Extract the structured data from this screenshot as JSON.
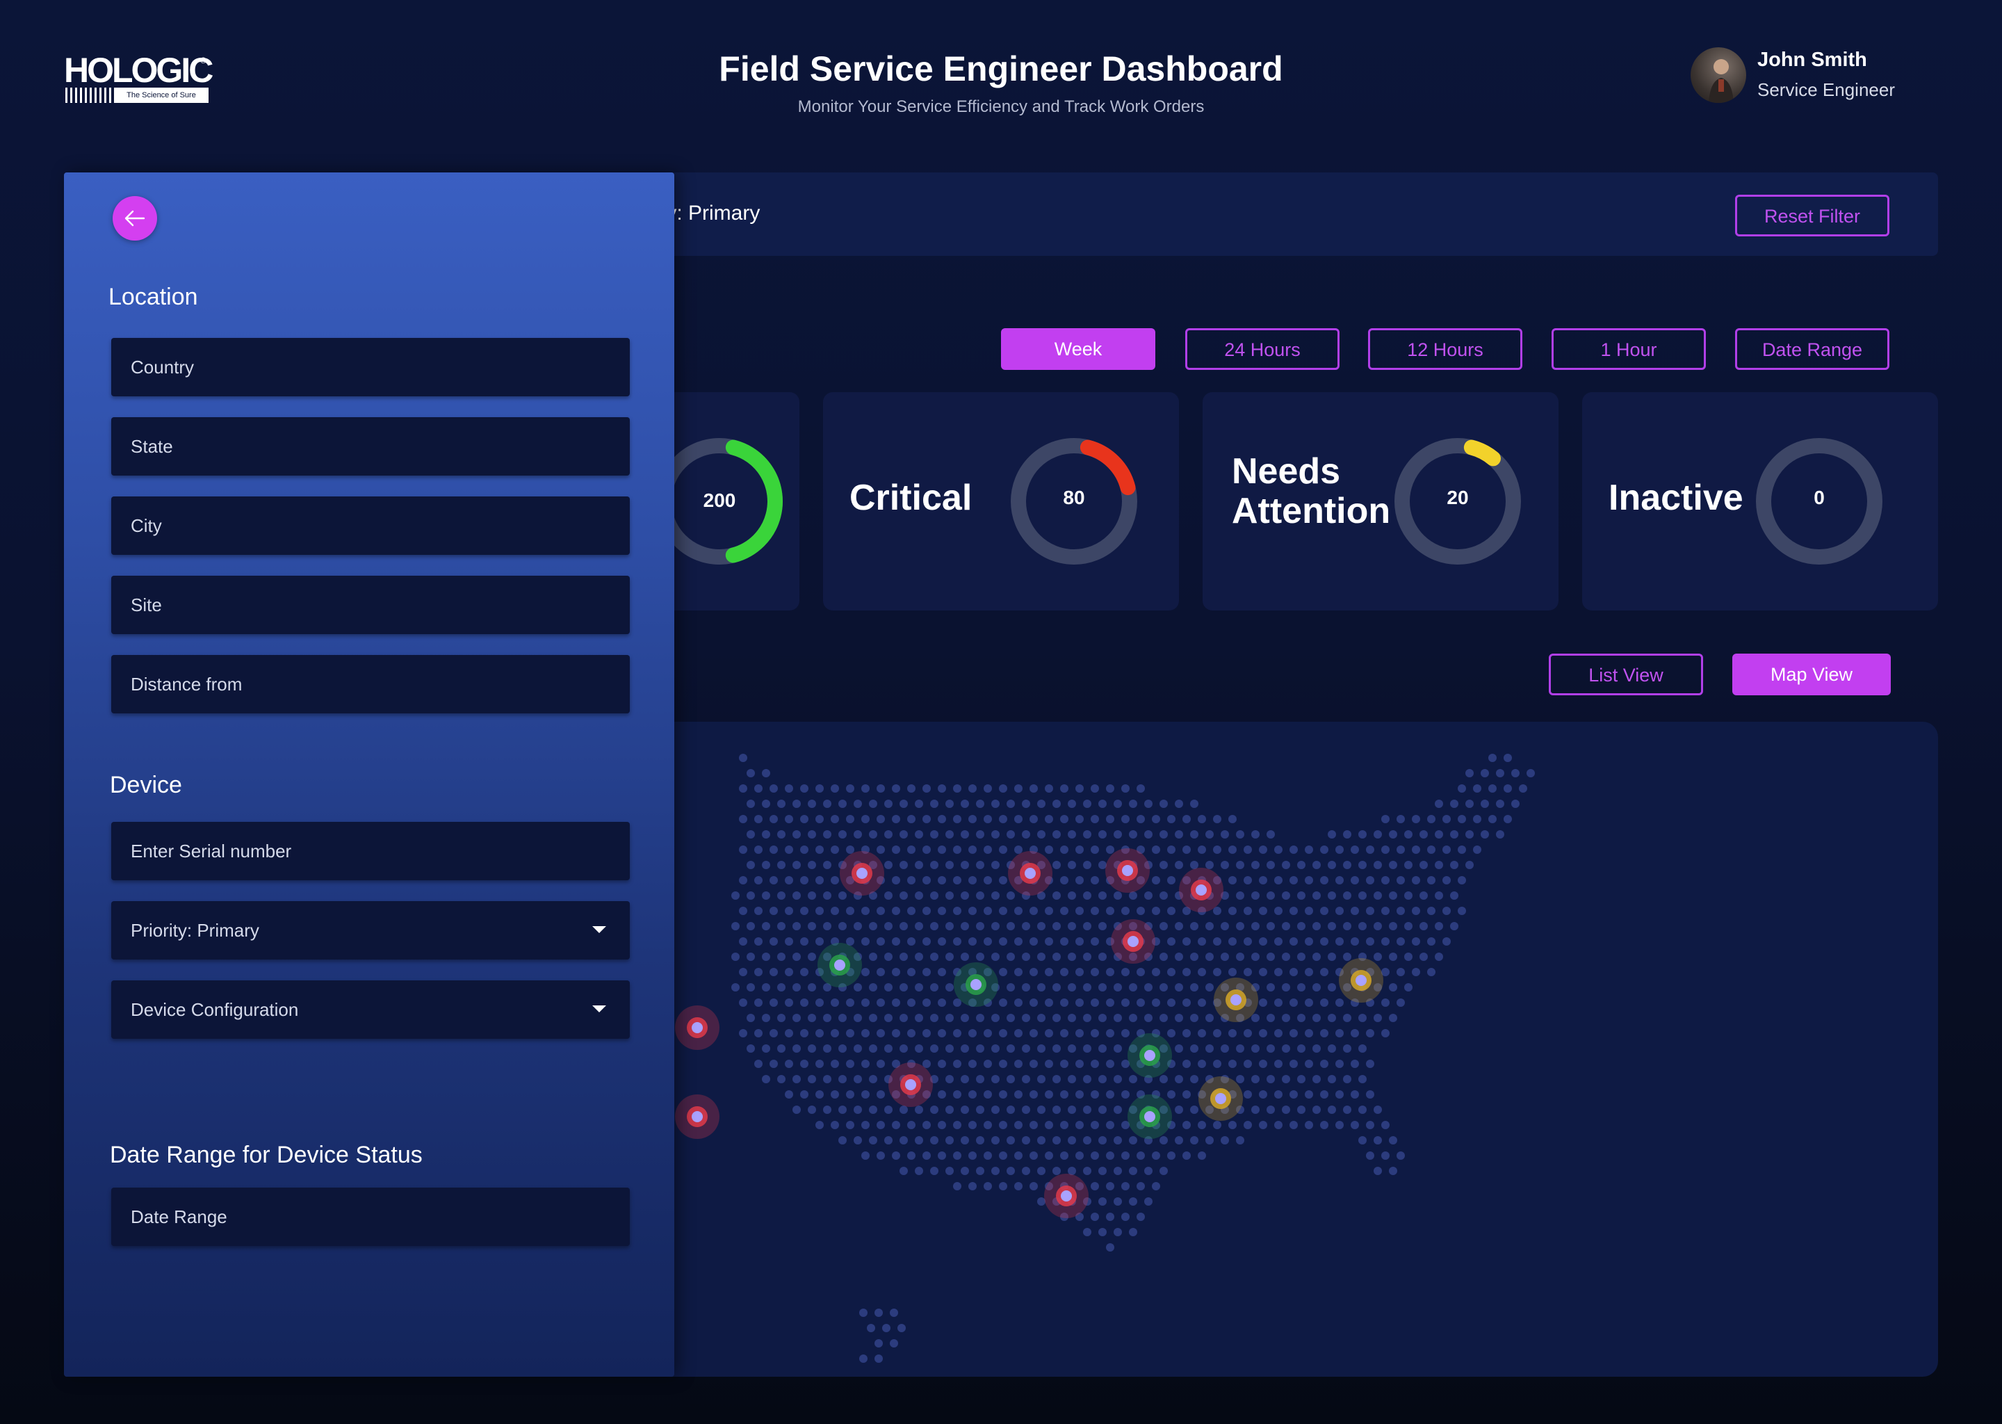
{
  "header": {
    "logo": {
      "brand": "HOLOGIC",
      "reg": "®",
      "tagline": "The Science of Sure"
    },
    "title": "Field Service Engineer Dashboard",
    "subtitle": "Monitor Your Service Efficiency and Track Work Orders",
    "user": {
      "name": "John Smith",
      "role": "Service Engineer"
    }
  },
  "filter_bar": {
    "active_filter_text": "ty: Primary",
    "reset_label": "Reset Filter"
  },
  "time_range": {
    "options": [
      "Week",
      "24 Hours",
      "12 Hours",
      "1 Hour",
      "Date Range"
    ],
    "selected": "Week"
  },
  "stats": [
    {
      "label": "",
      "value": "200",
      "fraction": 0.42,
      "color": "#3ad43a"
    },
    {
      "label": "Critical",
      "value": "80",
      "fraction": 0.17,
      "color": "#e8341c"
    },
    {
      "label_line1": "Needs",
      "label_line2": "Attention",
      "value": "20",
      "fraction": 0.07,
      "color": "#f2d22b"
    },
    {
      "label": "Inactive",
      "value": "0",
      "fraction": 0,
      "color": "#3d4666"
    }
  ],
  "views": {
    "list_label": "List View",
    "map_label": "Map View",
    "selected": "Map View"
  },
  "map": {
    "track_color": "#3d4666",
    "status_colors": {
      "critical": "#e03a4a",
      "normal": "#2aa04a",
      "warning": "#d4a628"
    },
    "markers": [
      {
        "status": "critical"
      },
      {
        "status": "critical"
      },
      {
        "status": "critical"
      },
      {
        "status": "critical"
      },
      {
        "status": "critical"
      },
      {
        "status": "critical"
      },
      {
        "status": "critical"
      },
      {
        "status": "critical"
      },
      {
        "status": "critical"
      },
      {
        "status": "normal"
      },
      {
        "status": "normal"
      },
      {
        "status": "normal"
      },
      {
        "status": "normal"
      },
      {
        "status": "warning"
      },
      {
        "status": "warning"
      },
      {
        "status": "warning"
      }
    ]
  },
  "side_panel": {
    "location_title": "Location",
    "location_fields": {
      "country": "Country",
      "state": "State",
      "city": "City",
      "site": "Site",
      "distance": "Distance from"
    },
    "device_title": "Device",
    "device_fields": {
      "serial": "Enter Serial number",
      "priority": "Priority: Primary",
      "configuration": "Device Configuration"
    },
    "date_title": "Date Range for Device Status",
    "date_field": "Date Range"
  }
}
